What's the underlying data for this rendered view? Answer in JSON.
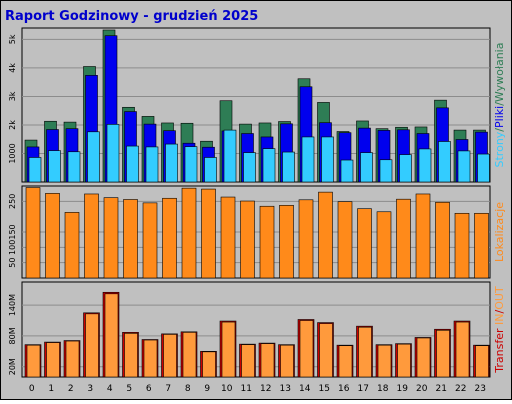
{
  "title": "Raport Godzinowy -  grudzień 2025",
  "colors": {
    "background": "#c0c0c0",
    "panel": "#c0c0c0",
    "title": "#0000cc",
    "visits": "#2e7d55",
    "pages": "#0000ee",
    "files": "#33ccff",
    "transfer_in": "#cc0000",
    "transfer_out": "#ff9a3c",
    "unique": "#ff8a1a",
    "grid": "#8c8c8c"
  },
  "chart_data": [
    {
      "type": "bar",
      "panel": "top",
      "categories": [
        "0",
        "1",
        "2",
        "3",
        "4",
        "5",
        "6",
        "7",
        "8",
        "9",
        "10",
        "11",
        "12",
        "13",
        "14",
        "15",
        "16",
        "17",
        "18",
        "19",
        "20",
        "21",
        "22",
        "23"
      ],
      "ylim": [
        0,
        5400
      ],
      "yticks": [
        "1000",
        "2k",
        "3k",
        "4k",
        "5k"
      ],
      "ytick_values": [
        1000,
        2000,
        3000,
        4000,
        5000
      ],
      "right_label": [
        {
          "text": "Strony",
          "color": "#33ccff"
        },
        {
          "text": "/",
          "color": "#2e7d55"
        },
        {
          "text": "Pliki",
          "color": "#0000ee"
        },
        {
          "text": "/",
          "color": "#2e7d55"
        },
        {
          "text": "Wywołania",
          "color": "#2e7d55"
        }
      ],
      "series": [
        {
          "role": "visits",
          "values": [
            1470,
            2130,
            2100,
            4050,
            5330,
            2620,
            2300,
            2070,
            2060,
            1430,
            2850,
            2030,
            2070,
            2120,
            3620,
            2790,
            1770,
            2140,
            1870,
            1920,
            1930,
            2870,
            1820,
            1820
          ]
        },
        {
          "role": "pages",
          "values": [
            1230,
            1840,
            1870,
            3740,
            5130,
            2470,
            2030,
            1800,
            1360,
            1220,
            1790,
            1700,
            1580,
            2040,
            3340,
            2080,
            1730,
            1890,
            1810,
            1830,
            1700,
            2600,
            1490,
            1750
          ]
        },
        {
          "role": "files",
          "values": [
            860,
            1100,
            1060,
            1760,
            2020,
            1260,
            1230,
            1330,
            1240,
            860,
            1820,
            1030,
            1170,
            1050,
            1580,
            1580,
            770,
            1030,
            780,
            960,
            1160,
            1420,
            1090,
            980
          ]
        }
      ]
    },
    {
      "type": "bar",
      "panel": "middle",
      "categories": [
        "0",
        "1",
        "2",
        "3",
        "4",
        "5",
        "6",
        "7",
        "8",
        "9",
        "10",
        "11",
        "12",
        "13",
        "14",
        "15",
        "16",
        "17",
        "18",
        "19",
        "20",
        "21",
        "22",
        "23"
      ],
      "ylim": [
        0,
        300
      ],
      "yticks": [
        "50",
        "100",
        "150",
        "250"
      ],
      "ytick_values": [
        50,
        100,
        150,
        250
      ],
      "right_label": [
        {
          "text": "Lokalizacje",
          "color": "#ff8a1a"
        }
      ],
      "series": [
        {
          "role": "unique",
          "values": [
            295,
            276,
            214,
            274,
            262,
            256,
            245,
            260,
            293,
            290,
            264,
            251,
            234,
            237,
            255,
            280,
            249,
            226,
            216,
            257,
            274,
            247,
            211,
            211
          ]
        }
      ]
    },
    {
      "type": "bar",
      "panel": "bottom",
      "categories": [
        "0",
        "1",
        "2",
        "3",
        "4",
        "5",
        "6",
        "7",
        "8",
        "9",
        "10",
        "11",
        "12",
        "13",
        "14",
        "15",
        "16",
        "17",
        "18",
        "19",
        "20",
        "21",
        "22",
        "23"
      ],
      "ylim": [
        0,
        185
      ],
      "yticks": [
        "20M",
        "80M",
        "140M"
      ],
      "ytick_values": [
        20,
        80,
        140
      ],
      "right_label": [
        {
          "text": "Transfer",
          "color": "#cc0000"
        },
        {
          "text": " IN",
          "color": "#ff9a3c"
        },
        {
          "text": "/",
          "color": "#cc0000"
        },
        {
          "text": "OUT",
          "color": "#ff9a3c"
        }
      ],
      "series": [
        {
          "role": "transfer_in",
          "values": [
            63,
            68,
            71,
            125,
            165,
            87,
            73,
            84,
            88,
            50,
            109,
            64,
            66,
            63,
            112,
            106,
            62,
            99,
            63,
            65,
            77,
            93,
            109,
            62
          ]
        },
        {
          "role": "transfer_out",
          "values": [
            62,
            67,
            70,
            123,
            162,
            85,
            72,
            83,
            87,
            49,
            107,
            63,
            65,
            62,
            110,
            104,
            61,
            97,
            62,
            64,
            76,
            91,
            107,
            61
          ]
        }
      ]
    }
  ]
}
